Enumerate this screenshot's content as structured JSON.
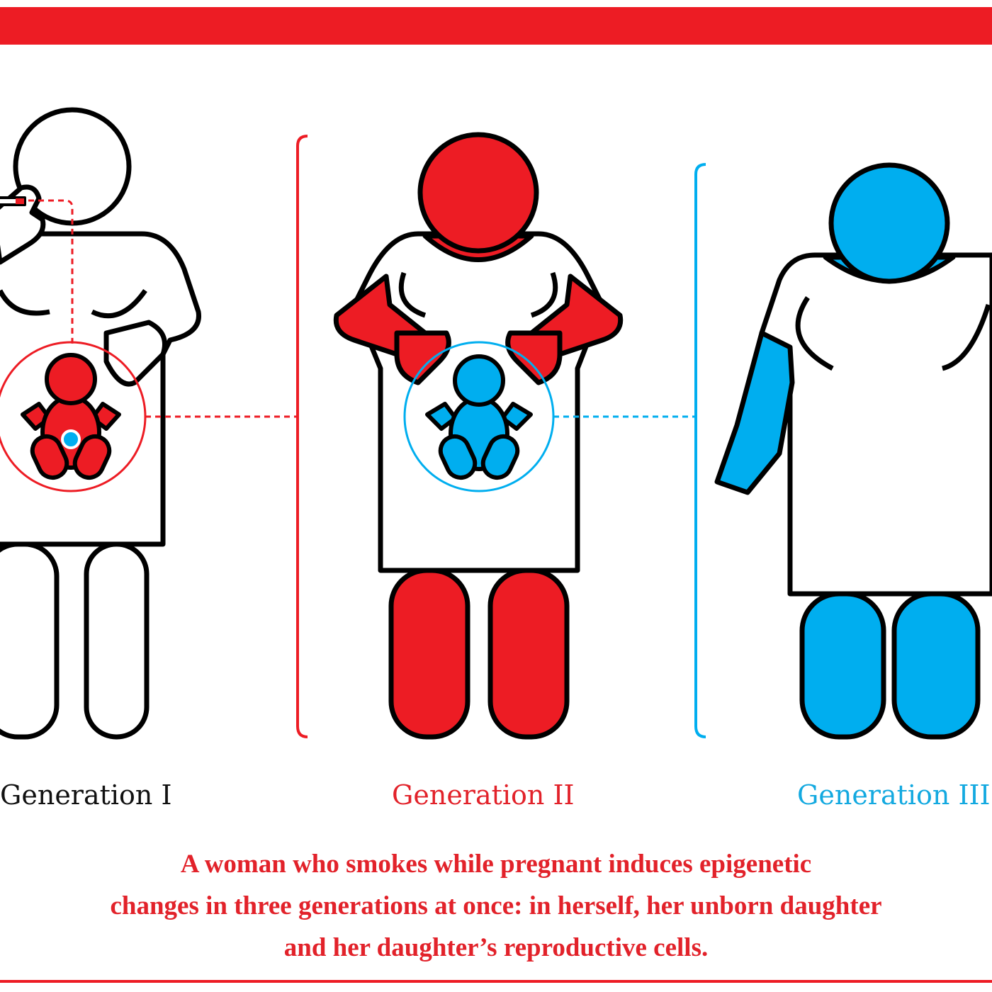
{
  "colors": {
    "red": "#ED1C24",
    "blue": "#00AEEF",
    "outline": "#000000"
  },
  "labels": {
    "gen1": "Generation I",
    "gen2": "Generation II",
    "gen3": "Generation III"
  },
  "caption": {
    "line1": "A woman who smokes while pregnant induces epigenetic",
    "line2": "changes in three generations at once: in herself, her unborn daughter",
    "line3": "and her daughter’s reproductive cells."
  }
}
